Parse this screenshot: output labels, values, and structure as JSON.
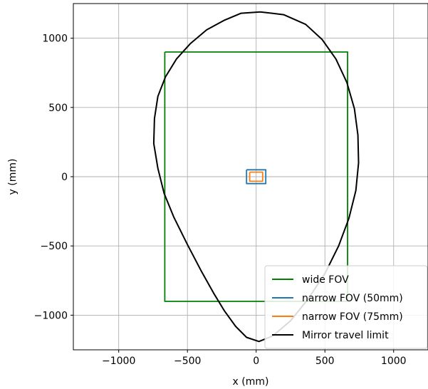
{
  "chart_data": {
    "type": "line",
    "title": "",
    "xlabel": "x (mm)",
    "ylabel": "y (mm)",
    "xlim": [
      -1330,
      1250
    ],
    "ylim": [
      -1250,
      1250
    ],
    "xticks": [
      -1000,
      -500,
      0,
      500,
      1000
    ],
    "xtick_labels": [
      "−1000",
      "−500",
      "0",
      "500",
      "1000"
    ],
    "yticks": [
      -1000,
      -500,
      0,
      500,
      1000
    ],
    "ytick_labels": [
      "−1000",
      "−500",
      "0",
      "500",
      "1000"
    ],
    "grid": true,
    "legend_position": "lower-right",
    "series": [
      {
        "name": "wide FOV",
        "color": "#008000",
        "x": [
          -665,
          665,
          665,
          -665,
          -665
        ],
        "y": [
          900,
          900,
          -900,
          -900,
          900
        ]
      },
      {
        "name": "narrow FOV (50mm)",
        "color": "#1f77b4",
        "x": [
          -70,
          70,
          70,
          -70,
          -70
        ],
        "y": [
          50,
          50,
          -50,
          -50,
          50
        ]
      },
      {
        "name": "narrow FOV (75mm)",
        "color": "#ff7f0e",
        "x": [
          -47,
          47,
          47,
          -47,
          -47
        ],
        "y": [
          33,
          33,
          -33,
          -33,
          33
        ]
      },
      {
        "name": "Mirror travel limit",
        "color": "#000000",
        "x": [
          30,
          200,
          360,
          480,
          580,
          660,
          715,
          740,
          745,
          725,
          675,
          600,
          500,
          380,
          250,
          120,
          20,
          -70,
          -150,
          -230,
          -310,
          -400,
          -500,
          -600,
          -670,
          -715,
          -745,
          -740,
          -715,
          -660,
          -580,
          -480,
          -360,
          -230,
          -110,
          30
        ],
        "y": [
          1190,
          1170,
          1100,
          990,
          850,
          680,
          490,
          300,
          100,
          -100,
          -300,
          -500,
          -700,
          -880,
          -1040,
          -1150,
          -1190,
          -1160,
          -1080,
          -970,
          -840,
          -680,
          -490,
          -290,
          -120,
          60,
          240,
          420,
          580,
          720,
          850,
          960,
          1060,
          1130,
          1180,
          1190
        ]
      }
    ]
  }
}
